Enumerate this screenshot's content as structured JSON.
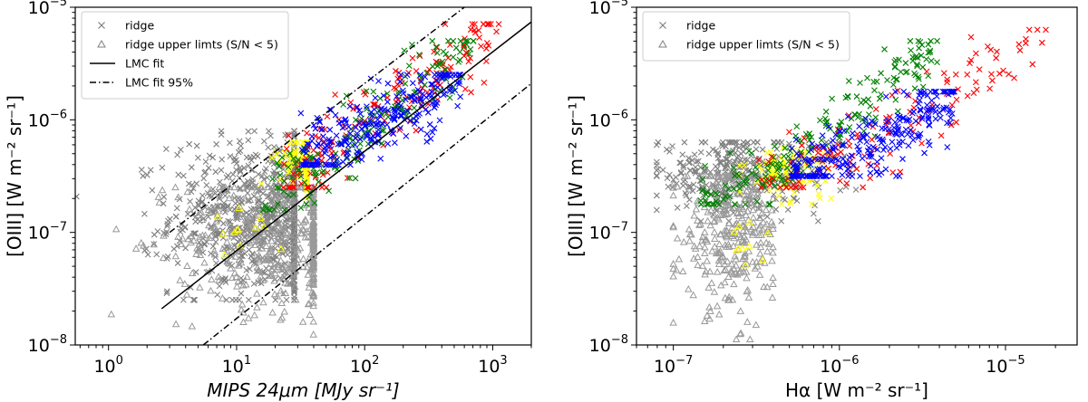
{
  "chart_data": [
    {
      "type": "scatter",
      "xscale": "log",
      "yscale": "log",
      "xlim": [
        0.55,
        2000
      ],
      "ylim": [
        1e-08,
        1e-05
      ],
      "xlabel": "MIPS 24μm [MJy sr⁻¹]",
      "ylabel": "[OIII] [W m⁻² sr⁻¹]",
      "x_ticks": [
        {
          "value": 1,
          "base": "10",
          "exp": "0"
        },
        {
          "value": 10,
          "base": "10",
          "exp": "1"
        },
        {
          "value": 100,
          "base": "10",
          "exp": "2"
        },
        {
          "value": 1000,
          "base": "10",
          "exp": "3"
        }
      ],
      "y_ticks": [
        {
          "value": 1e-08,
          "base": "10",
          "exp": "−8"
        },
        {
          "value": 1e-07,
          "base": "10",
          "exp": "−7"
        },
        {
          "value": 1e-06,
          "base": "10",
          "exp": "−6"
        },
        {
          "value": 1e-05,
          "base": "10",
          "exp": "−5"
        }
      ],
      "legend": {
        "location": "upper-left",
        "entries": [
          {
            "label": "ridge",
            "marker": "x",
            "color": "#808080"
          },
          {
            "label": "ridge upper limts (S/N < 5)",
            "marker": "triangle",
            "color": "#808080"
          },
          {
            "label": "LMC fit",
            "line": "solid",
            "color": "#000000"
          },
          {
            "label": "LMC fit 95%",
            "line": "dashdot",
            "color": "#000000"
          }
        ]
      },
      "fit_lines": [
        {
          "name": "LMC fit",
          "style": "solid",
          "x": [
            2.6,
            2000
          ],
          "y": [
            2.1e-08,
            7.4e-06
          ]
        },
        {
          "name": "LMC fit 95% upper",
          "style": "dashdot",
          "x": [
            3.0,
            600
          ],
          "y": [
            1e-07,
            1e-05
          ]
        },
        {
          "name": "LMC fit 95% lower",
          "style": "dashdot",
          "x": [
            5.5,
            2000
          ],
          "y": [
            1e-08,
            2.1e-06
          ]
        }
      ],
      "clusters": [
        {
          "name": "ridge",
          "marker": "x",
          "color": "#808080",
          "count": 900,
          "x_log": [
            -0.25,
            1.45
          ],
          "y_log": [
            -7.6,
            -6.1
          ],
          "center": [
            1.3,
            -6.85
          ]
        },
        {
          "name": "ridge upper limits",
          "marker": "triangle",
          "color": "#999999",
          "count": 480,
          "x_log": [
            -0.2,
            1.6
          ],
          "y_log": [
            -7.95,
            -6.6
          ],
          "center": [
            1.4,
            -7.05
          ]
        },
        {
          "name": "yellow",
          "marker": "x",
          "color": "#ffff00",
          "count": 200,
          "x_log": [
            0.9,
            1.55
          ],
          "y_log": [
            -6.7,
            -6.2
          ],
          "center": [
            1.65,
            -6.35
          ]
        },
        {
          "name": "yellow upper limits",
          "marker": "triangle",
          "color": "#ffff00",
          "count": 12,
          "x_log": [
            0.8,
            1.5
          ],
          "y_log": [
            -7.2,
            -6.7
          ],
          "center": [
            1.1,
            -6.95
          ]
        },
        {
          "name": "red",
          "marker": "x",
          "color": "#ff0000",
          "count": 170,
          "x_log": [
            1.35,
            3.05
          ],
          "y_log": [
            -6.6,
            -5.15
          ],
          "center": [
            1.6,
            -6.35
          ]
        },
        {
          "name": "green",
          "marker": "x",
          "color": "#008000",
          "count": 170,
          "x_log": [
            1.2,
            2.85
          ],
          "y_log": [
            -6.8,
            -5.3
          ],
          "center": [
            2.1,
            -6.05
          ]
        },
        {
          "name": "blue",
          "marker": "x",
          "color": "#0000ff",
          "count": 260,
          "x_log": [
            1.5,
            2.75
          ],
          "y_log": [
            -6.4,
            -5.6
          ],
          "center": [
            2.1,
            -6.0
          ]
        }
      ]
    },
    {
      "type": "scatter",
      "xscale": "log",
      "yscale": "log",
      "xlim": [
        6e-08,
        2.7e-05
      ],
      "ylim": [
        1e-08,
        1e-05
      ],
      "xlabel": "Hα  [W m⁻² sr⁻¹]",
      "ylabel": "[OIII] [W m⁻² sr⁻¹]",
      "x_ticks": [
        {
          "value": 1e-07,
          "base": "10",
          "exp": "−7"
        },
        {
          "value": 1e-06,
          "base": "10",
          "exp": "−6"
        },
        {
          "value": 1e-05,
          "base": "10",
          "exp": "−5"
        }
      ],
      "y_ticks": [
        {
          "value": 1e-08,
          "base": "10",
          "exp": "−8"
        },
        {
          "value": 1e-07,
          "base": "10",
          "exp": "−7"
        },
        {
          "value": 1e-06,
          "base": "10",
          "exp": "−6"
        },
        {
          "value": 1e-05,
          "base": "10",
          "exp": "−5"
        }
      ],
      "legend": {
        "location": "upper-left",
        "entries": [
          {
            "label": "ridge",
            "marker": "x",
            "color": "#808080"
          },
          {
            "label": "ridge upper limts (S/N < 5)",
            "marker": "triangle",
            "color": "#808080"
          }
        ]
      },
      "fit_lines": [],
      "clusters": [
        {
          "name": "ridge",
          "marker": "x",
          "color": "#808080",
          "count": 350,
          "x_log": [
            -7.1,
            -5.9
          ],
          "y_log": [
            -6.9,
            -6.2
          ],
          "center": [
            -6.6,
            -6.5
          ]
        },
        {
          "name": "ridge upper limits",
          "marker": "triangle",
          "color": "#999999",
          "count": 320,
          "x_log": [
            -7.0,
            -6.4
          ],
          "y_log": [
            -7.95,
            -6.5
          ],
          "center": [
            -6.65,
            -7.0
          ]
        },
        {
          "name": "yellow",
          "marker": "x",
          "color": "#ffff00",
          "count": 90,
          "x_log": [
            -6.6,
            -6.05
          ],
          "y_log": [
            -6.75,
            -6.25
          ],
          "center": [
            -6.3,
            -6.45
          ]
        },
        {
          "name": "yellow upper limits",
          "marker": "triangle",
          "color": "#ffff00",
          "count": 10,
          "x_log": [
            -6.75,
            -6.4
          ],
          "y_log": [
            -7.3,
            -6.9
          ],
          "center": [
            -6.55,
            -7.1
          ]
        },
        {
          "name": "green",
          "marker": "x",
          "color": "#008000",
          "count": 200,
          "x_log": [
            -6.85,
            -5.4
          ],
          "y_log": [
            -6.75,
            -5.3
          ],
          "center": [
            -6.1,
            -6.1
          ]
        },
        {
          "name": "red",
          "marker": "x",
          "color": "#ff0000",
          "count": 130,
          "x_log": [
            -6.5,
            -4.75
          ],
          "y_log": [
            -6.6,
            -5.2
          ],
          "center": [
            -6.2,
            -6.3
          ]
        },
        {
          "name": "blue",
          "marker": "x",
          "color": "#0000ff",
          "count": 260,
          "x_log": [
            -6.3,
            -5.3
          ],
          "y_log": [
            -6.5,
            -5.75
          ],
          "center": [
            -5.75,
            -6.05
          ]
        }
      ]
    }
  ]
}
